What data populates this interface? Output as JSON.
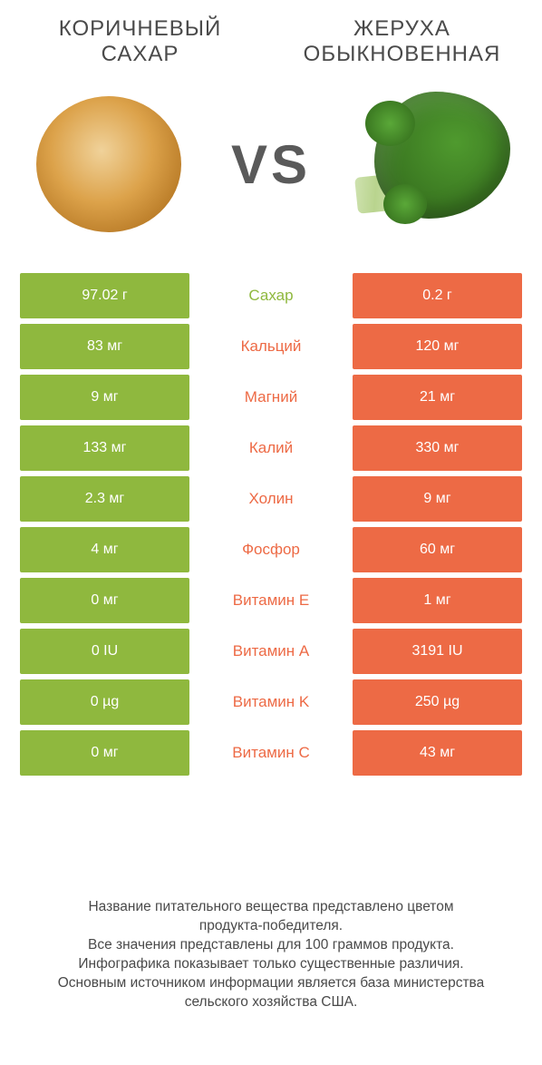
{
  "colors": {
    "green": "#8fb83e",
    "orange": "#ed6a45",
    "vs_text": "#5a5a5a",
    "label_green": "#ed6a45",
    "label_orange": "#ed6a45"
  },
  "header": {
    "left_title_line1": "КОРИЧНЕВЫЙ",
    "left_title_line2": "САХАР",
    "right_title_line1": "ЖЕРУХА",
    "right_title_line2": "ОБЫКНОВЕННАЯ"
  },
  "vs_label": "VS",
  "rows": [
    {
      "left": "97.02 г",
      "label": "Сахар",
      "right": "0.2 г",
      "winner": "left"
    },
    {
      "left": "83 мг",
      "label": "Кальций",
      "right": "120 мг",
      "winner": "right"
    },
    {
      "left": "9 мг",
      "label": "Магний",
      "right": "21 мг",
      "winner": "right"
    },
    {
      "left": "133 мг",
      "label": "Калий",
      "right": "330 мг",
      "winner": "right"
    },
    {
      "left": "2.3 мг",
      "label": "Холин",
      "right": "9 мг",
      "winner": "right"
    },
    {
      "left": "4 мг",
      "label": "Фосфор",
      "right": "60 мг",
      "winner": "right"
    },
    {
      "left": "0 мг",
      "label": "Витамин E",
      "right": "1 мг",
      "winner": "right"
    },
    {
      "left": "0 IU",
      "label": "Витамин A",
      "right": "3191 IU",
      "winner": "right"
    },
    {
      "left": "0 µg",
      "label": "Витамин K",
      "right": "250 µg",
      "winner": "right"
    },
    {
      "left": "0 мг",
      "label": "Витамин C",
      "right": "43 мг",
      "winner": "right"
    }
  ],
  "footnote": {
    "l1": "Название питательного вещества представлено цветом",
    "l2": "продукта-победителя.",
    "l3": "Все значения представлены для 100 граммов продукта.",
    "l4": "Инфографика показывает только существенные различия.",
    "l5": "Основным источником информации является база министерства",
    "l6": "сельского хозяйства США."
  }
}
